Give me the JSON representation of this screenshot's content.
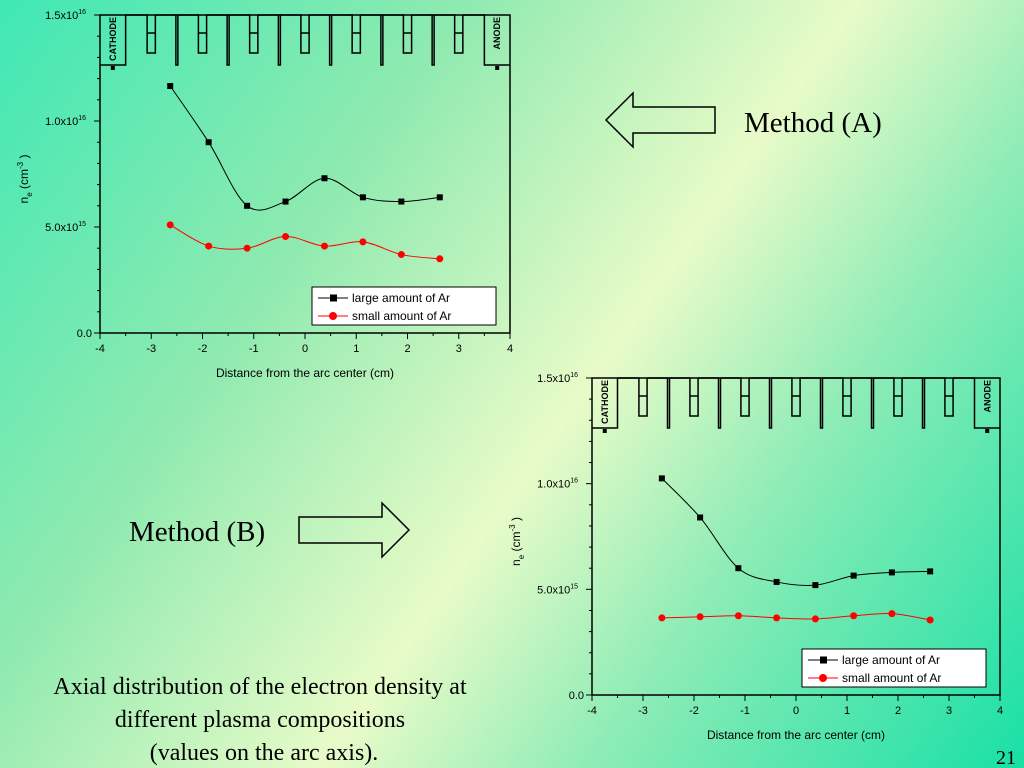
{
  "slide": {
    "method_a_label": "Method (A)",
    "method_b_label": "Method (B)",
    "caption": [
      "Axial distribution of the electron density at",
      "different plasma compositions",
      "(values on the arc axis)."
    ],
    "page_number": "21"
  },
  "colors": {
    "large": "#000000",
    "small": "#ff0000"
  },
  "chart_data": [
    {
      "type": "line",
      "title": "",
      "xlabel": "Distance from the arc center (cm)",
      "ylabel_base": "n",
      "ylabel_sub": "e",
      "ylabel_unit": "(cm",
      "ylabel_sup": "-3",
      "ylabel_close": ")",
      "xlim": [
        -4,
        4
      ],
      "ylim": [
        0,
        1.5e+16
      ],
      "x_ticks": [
        "-4",
        "-3",
        "-2",
        "-1",
        "0",
        "1",
        "2",
        "3",
        "4"
      ],
      "y_ticks": [
        {
          "value": 0,
          "label": "0.0",
          "exp": ""
        },
        {
          "value": 5000000000000000.0,
          "label": "5.0x10",
          "exp": "15"
        },
        {
          "value": 1e+16,
          "label": "1.0x10",
          "exp": "16"
        },
        {
          "value": 1.5e+16,
          "label": "1.5x10",
          "exp": "16"
        }
      ],
      "electrode_labels": {
        "cathode": "CATHODE",
        "anode": "ANODE"
      },
      "electrode_markers": [
        -3.75,
        3.75
      ],
      "legend_position": "bottom-right",
      "series": [
        {
          "name": "large amount of Ar",
          "marker": "square",
          "color": "#000000",
          "x": [
            -2.63,
            -1.88,
            -1.13,
            -0.38,
            0.38,
            1.13,
            1.88,
            2.63
          ],
          "y": [
            1.165e+16,
            9000000000000000.0,
            6000000000000000.0,
            6200000000000000.0,
            7300000000000000.0,
            6400000000000000.0,
            6200000000000000.0,
            6400000000000000.0
          ]
        },
        {
          "name": "small amount of Ar",
          "marker": "circle",
          "color": "#ff0000",
          "x": [
            -2.63,
            -1.88,
            -1.13,
            -0.38,
            0.38,
            1.13,
            1.88,
            2.63
          ],
          "y": [
            5100000000000000.0,
            4100000000000000.0,
            4000000000000000.0,
            4550000000000000.0,
            4100000000000000.0,
            4300000000000000.0,
            3700000000000000.0,
            3500000000000000.0
          ]
        }
      ]
    },
    {
      "type": "line",
      "title": "",
      "xlabel": "Distance from the arc center (cm)",
      "ylabel_base": "n",
      "ylabel_sub": "e",
      "ylabel_unit": "(cm",
      "ylabel_sup": "-3",
      "ylabel_close": ")",
      "xlim": [
        -4,
        4
      ],
      "ylim": [
        0,
        1.5e+16
      ],
      "x_ticks": [
        "-4",
        "-3",
        "-2",
        "-1",
        "0",
        "1",
        "2",
        "3",
        "4"
      ],
      "y_ticks": [
        {
          "value": 0,
          "label": "0.0",
          "exp": ""
        },
        {
          "value": 5000000000000000.0,
          "label": "5.0x10",
          "exp": "15"
        },
        {
          "value": 1e+16,
          "label": "1.0x10",
          "exp": "16"
        },
        {
          "value": 1.5e+16,
          "label": "1.5x10",
          "exp": "16"
        }
      ],
      "electrode_labels": {
        "cathode": "CATHODE",
        "anode": "ANODE"
      },
      "electrode_markers": [
        -3.75,
        3.75
      ],
      "legend_position": "bottom-right",
      "series": [
        {
          "name": "large amount of Ar",
          "marker": "square",
          "color": "#000000",
          "x": [
            -2.63,
            -1.88,
            -1.13,
            -0.38,
            0.38,
            1.13,
            1.88,
            2.63
          ],
          "y": [
            1.025e+16,
            8400000000000000.0,
            6000000000000000.0,
            5350000000000000.0,
            5200000000000000.0,
            5650000000000000.0,
            5800000000000000.0,
            5850000000000000.0
          ]
        },
        {
          "name": "small amount of Ar",
          "marker": "circle",
          "color": "#ff0000",
          "x": [
            -2.63,
            -1.88,
            -1.13,
            -0.38,
            0.38,
            1.13,
            1.88,
            2.63
          ],
          "y": [
            3650000000000000.0,
            3700000000000000.0,
            3750000000000000.0,
            3650000000000000.0,
            3600000000000000.0,
            3750000000000000.0,
            3850000000000000.0,
            3550000000000000.0
          ]
        }
      ]
    }
  ]
}
